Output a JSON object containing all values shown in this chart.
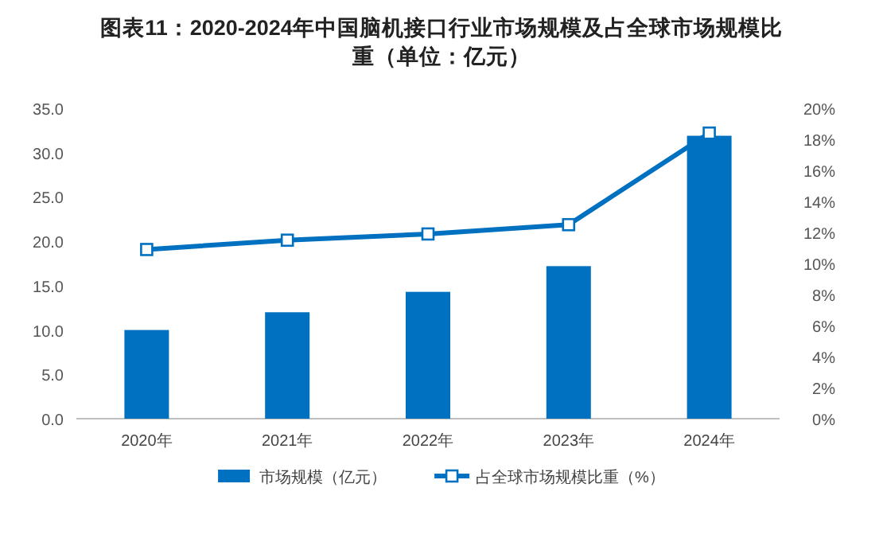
{
  "chart_data": {
    "type": "bar",
    "title": "图表11：2020-2024年中国脑机接口行业市场规模及占全球市场规模比重（单位：亿元）",
    "categories": [
      "2020年",
      "2021年",
      "2022年",
      "2023年",
      "2024年"
    ],
    "series": [
      {
        "name": "市场规模（亿元）",
        "color": "#0070c0",
        "values": [
          10.0,
          12.0,
          14.3,
          17.2,
          31.9
        ]
      },
      {
        "name": "占全球市场规模比重（%）",
        "type": "line",
        "axis": "y2",
        "marker": "square",
        "color": "#0070c0",
        "values": [
          10.9,
          11.5,
          11.9,
          12.5,
          18.4
        ]
      }
    ],
    "ylim": [
      0,
      35
    ],
    "yticks": [
      {
        "value": 0,
        "label": "0.0"
      },
      {
        "value": 5,
        "label": "5.0"
      },
      {
        "value": 10,
        "label": "10.0"
      },
      {
        "value": 15,
        "label": "15.0"
      },
      {
        "value": 20,
        "label": "20.0"
      },
      {
        "value": 25,
        "label": "25.0"
      },
      {
        "value": 30,
        "label": "30.0"
      },
      {
        "value": 35,
        "label": "35.0"
      }
    ],
    "y2lim": [
      0,
      20
    ],
    "y2ticks": [
      {
        "value": 0,
        "label": "0%"
      },
      {
        "value": 2,
        "label": "2%"
      },
      {
        "value": 4,
        "label": "4%"
      },
      {
        "value": 6,
        "label": "6%"
      },
      {
        "value": 8,
        "label": "8%"
      },
      {
        "value": 10,
        "label": "10%"
      },
      {
        "value": 12,
        "label": "12%"
      },
      {
        "value": 14,
        "label": "14%"
      },
      {
        "value": 16,
        "label": "16%"
      },
      {
        "value": 18,
        "label": "18%"
      },
      {
        "value": 20,
        "label": "20%"
      }
    ],
    "legend": "bottom"
  }
}
